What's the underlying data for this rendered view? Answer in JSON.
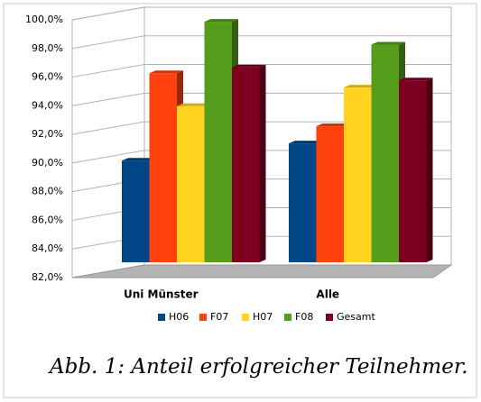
{
  "chart_data": {
    "type": "bar3d",
    "caption": "Abb. 1: Anteil erfolgreicher Teilnehmer.",
    "categories": [
      "Uni Münster",
      "Alle"
    ],
    "series": [
      {
        "name": "H06",
        "color": "#004586",
        "values": [
          89.1,
          90.3
        ]
      },
      {
        "name": "F07",
        "color": "#ff420e",
        "values": [
          95.2,
          91.5
        ]
      },
      {
        "name": "H07",
        "color": "#ffd320",
        "values": [
          92.9,
          94.2
        ]
      },
      {
        "name": "F08",
        "color": "#579d1c",
        "values": [
          98.8,
          97.2
        ]
      },
      {
        "name": "Gesamt",
        "color": "#7e0021",
        "values": [
          95.6,
          94.7
        ]
      }
    ],
    "ylim": [
      82,
      100
    ],
    "yticks": [
      {
        "value": 82,
        "label": "82,0%"
      },
      {
        "value": 84,
        "label": "84,0%"
      },
      {
        "value": 86,
        "label": "86,0%"
      },
      {
        "value": 88,
        "label": "88,0%"
      },
      {
        "value": 90,
        "label": "90,0%"
      },
      {
        "value": 92,
        "label": "92,0%"
      },
      {
        "value": 94,
        "label": "94,0%"
      },
      {
        "value": 96,
        "label": "96,0%"
      },
      {
        "value": 98,
        "label": "98,0%"
      },
      {
        "value": 100,
        "label": "100,0%"
      }
    ],
    "grid": true,
    "legend": "bottom"
  }
}
